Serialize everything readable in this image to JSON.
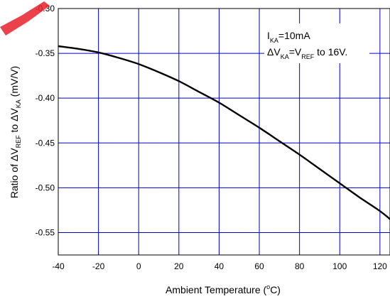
{
  "chart_data": {
    "type": "line",
    "xlabel": "Ambient Temperature (°C)",
    "xlabel_parts": {
      "main": "Ambient Temperature (",
      "sup": "o",
      "unit": "C)"
    },
    "ylabel": "Ratio of ΔVREF to ΔVKA (mV/V)",
    "ylabel_parts": {
      "p1": "Ratio of ΔV",
      "s1": "REF",
      "p2": " to ΔV",
      "s2": "KA",
      "p3": " (mV/V)"
    },
    "xlim": [
      -40,
      125
    ],
    "ylim": [
      -0.575,
      -0.3
    ],
    "x_ticks": [
      -40,
      -20,
      0,
      20,
      40,
      60,
      80,
      100,
      120
    ],
    "x_tick_labels": [
      "-40",
      "-20",
      "0",
      "20",
      "40",
      "60",
      "80",
      "100",
      "120"
    ],
    "y_ticks": [
      -0.3,
      -0.35,
      -0.4,
      -0.45,
      -0.5,
      -0.55
    ],
    "y_tick_labels": [
      "-0.30",
      "-0.35",
      "-0.40",
      "-0.45",
      "-0.50",
      "-0.55"
    ],
    "grid": true,
    "grid_color": "#0000cc",
    "line_color": "#000000",
    "series": [
      {
        "x": [
          -40,
          -30,
          -20,
          -10,
          0,
          10,
          20,
          30,
          40,
          50,
          60,
          70,
          80,
          90,
          100,
          110,
          120,
          125
        ],
        "y": [
          -0.342,
          -0.345,
          -0.349,
          -0.355,
          -0.362,
          -0.371,
          -0.381,
          -0.393,
          -0.405,
          -0.419,
          -0.433,
          -0.448,
          -0.463,
          -0.479,
          -0.495,
          -0.511,
          -0.526,
          -0.535
        ]
      }
    ],
    "annotation": {
      "line1": {
        "a": "I",
        "a_sub": "KA",
        "b": "=10mA"
      },
      "line2": {
        "a": "ΔV",
        "a_sub": "KA",
        "b": "=V",
        "b_sub": "REF",
        "c": " to 16V."
      }
    }
  }
}
